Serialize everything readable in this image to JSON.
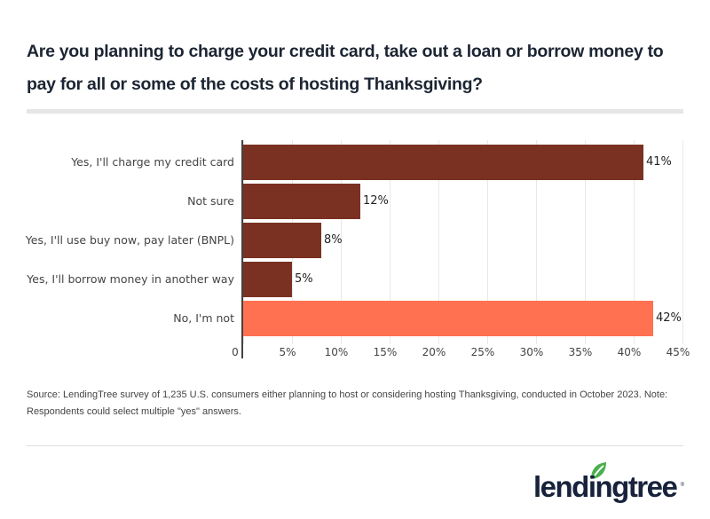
{
  "header": {
    "title": "Are you planning to charge your credit card, take out a loan or borrow money to pay for all or some of the costs of hosting Thanksgiving?"
  },
  "chart_data": {
    "type": "bar",
    "orientation": "horizontal",
    "title": "Are you planning to charge your credit card, take out a loan or borrow money to pay for all or some of the costs of hosting Thanksgiving?",
    "categories": [
      "Yes, I'll charge my credit card",
      "Not sure",
      "Yes, I'll use buy now, pay later (BNPL)",
      "Yes, I'll borrow money in another way",
      "No, I'm not"
    ],
    "values": [
      41,
      12,
      8,
      5,
      42
    ],
    "value_labels": [
      "41%",
      "12%",
      "8%",
      "5%",
      "42%"
    ],
    "colors": [
      "#7b3122",
      "#7b3122",
      "#7b3122",
      "#7b3122",
      "#ff7150"
    ],
    "xlabel": "",
    "ylabel": "",
    "xlim": [
      0,
      45
    ],
    "xticks": [
      "0",
      "5%",
      "10%",
      "15%",
      "20%",
      "25%",
      "30%",
      "35%",
      "40%",
      "45%"
    ],
    "grid": true,
    "legend": null
  },
  "footer": {
    "source": "Source: LendingTree survey of 1,235 U.S. consumers either planning to host or considering hosting Thanksgiving, conducted in October 2023.  Note: Respondents could select multiple \"yes\" answers.",
    "logo_text": "lendingtree",
    "logo_icon": "leaf-icon",
    "brand_green": "#4caf50",
    "brand_navy": "#17223b"
  }
}
